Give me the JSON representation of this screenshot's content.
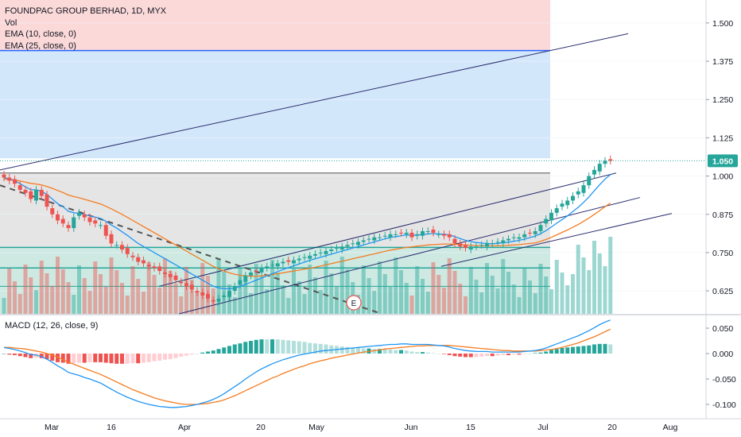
{
  "legend": {
    "title": "FOUNDPAC GROUP BERHAD, 1D, MYX",
    "vol": "Vol",
    "ema10": "EMA (10, close, 0)",
    "ema25": "EMA (25, close, 0)"
  },
  "macd_legend": "MACD (12, 26, close, 9)",
  "price_badge": "1.050",
  "event_marker": "E",
  "colors": {
    "up": "#26a69a",
    "down": "#ef5350",
    "ema10": "#2196f3",
    "ema25": "#f57c20",
    "trendline": "#2a2e6e",
    "range_red": "#fcd9d9",
    "range_blue": "#d3e7fb",
    "range_gray": "#e5e5e5",
    "range_green": "#cde9e2",
    "hline_blue": "#2962ff",
    "hline_green": "#26a69a",
    "price_line": "#26a69a"
  },
  "chart_data": [
    {
      "type": "candlestick",
      "title": "FOUNDPAC GROUP BERHAD, 1D, MYX",
      "y_ticks": [
        "1.500",
        "1.375",
        "1.250",
        "1.125",
        "1.000",
        "0.875",
        "0.750",
        "0.625"
      ],
      "ylim": [
        0.55,
        1.575
      ],
      "x_ticks": [
        "Mar",
        "16",
        "Apr",
        "20",
        "May",
        "Jun",
        "15",
        "Jul",
        "20",
        "Aug"
      ],
      "last_price": 1.05,
      "close": [
        0.995,
        0.985,
        0.975,
        0.955,
        0.945,
        0.925,
        0.955,
        0.935,
        0.9,
        0.875,
        0.855,
        0.845,
        0.83,
        0.865,
        0.88,
        0.865,
        0.85,
        0.845,
        0.84,
        0.805,
        0.78,
        0.775,
        0.76,
        0.745,
        0.735,
        0.72,
        0.715,
        0.705,
        0.7,
        0.69,
        0.68,
        0.67,
        0.66,
        0.65,
        0.64,
        0.63,
        0.62,
        0.61,
        0.6,
        0.59,
        0.6,
        0.61,
        0.625,
        0.64,
        0.66,
        0.675,
        0.685,
        0.69,
        0.7,
        0.705,
        0.71,
        0.715,
        0.72,
        0.72,
        0.725,
        0.73,
        0.735,
        0.74,
        0.745,
        0.75,
        0.755,
        0.76,
        0.765,
        0.77,
        0.775,
        0.78,
        0.785,
        0.79,
        0.795,
        0.8,
        0.8,
        0.805,
        0.81,
        0.81,
        0.815,
        0.815,
        0.8,
        0.81,
        0.82,
        0.82,
        0.815,
        0.81,
        0.805,
        0.8,
        0.78,
        0.77,
        0.765,
        0.77,
        0.77,
        0.775,
        0.78,
        0.78,
        0.785,
        0.79,
        0.795,
        0.8,
        0.8,
        0.81,
        0.815,
        0.82,
        0.84,
        0.86,
        0.88,
        0.895,
        0.91,
        0.92,
        0.935,
        0.95,
        0.97,
        1.0,
        1.02,
        1.04,
        1.05,
        1.05
      ],
      "ema10": [
        0.995,
        0.99,
        0.985,
        0.975,
        0.965,
        0.955,
        0.955,
        0.95,
        0.94,
        0.925,
        0.91,
        0.9,
        0.885,
        0.88,
        0.878,
        0.874,
        0.87,
        0.866,
        0.862,
        0.852,
        0.84,
        0.83,
        0.818,
        0.806,
        0.793,
        0.78,
        0.77,
        0.76,
        0.75,
        0.74,
        0.73,
        0.72,
        0.71,
        0.7,
        0.69,
        0.68,
        0.67,
        0.66,
        0.65,
        0.64,
        0.635,
        0.632,
        0.632,
        0.634,
        0.64,
        0.646,
        0.653,
        0.66,
        0.667,
        0.674,
        0.681,
        0.688,
        0.695,
        0.701,
        0.707,
        0.713,
        0.719,
        0.725,
        0.73,
        0.735,
        0.74,
        0.745,
        0.75,
        0.755,
        0.76,
        0.765,
        0.77,
        0.775,
        0.78,
        0.785,
        0.79,
        0.795,
        0.8,
        0.802,
        0.805,
        0.808,
        0.806,
        0.807,
        0.809,
        0.811,
        0.812,
        0.811,
        0.81,
        0.808,
        0.802,
        0.796,
        0.79,
        0.786,
        0.783,
        0.781,
        0.78,
        0.779,
        0.78,
        0.782,
        0.784,
        0.787,
        0.79,
        0.794,
        0.799,
        0.804,
        0.812,
        0.822,
        0.834,
        0.846,
        0.858,
        0.87,
        0.884,
        0.898,
        0.914,
        0.932,
        0.952,
        0.972,
        0.99,
        1.005
      ],
      "ema25": [
        0.99,
        0.989,
        0.987,
        0.984,
        0.98,
        0.976,
        0.974,
        0.971,
        0.966,
        0.96,
        0.953,
        0.946,
        0.938,
        0.933,
        0.929,
        0.924,
        0.919,
        0.914,
        0.909,
        0.901,
        0.893,
        0.884,
        0.875,
        0.865,
        0.855,
        0.845,
        0.835,
        0.825,
        0.815,
        0.805,
        0.795,
        0.785,
        0.775,
        0.765,
        0.755,
        0.745,
        0.735,
        0.725,
        0.715,
        0.705,
        0.697,
        0.69,
        0.684,
        0.679,
        0.676,
        0.674,
        0.673,
        0.673,
        0.674,
        0.676,
        0.678,
        0.681,
        0.684,
        0.687,
        0.69,
        0.693,
        0.696,
        0.699,
        0.702,
        0.706,
        0.71,
        0.714,
        0.718,
        0.722,
        0.726,
        0.73,
        0.734,
        0.738,
        0.742,
        0.746,
        0.75,
        0.754,
        0.758,
        0.761,
        0.764,
        0.767,
        0.769,
        0.771,
        0.773,
        0.775,
        0.776,
        0.777,
        0.778,
        0.778,
        0.777,
        0.776,
        0.775,
        0.774,
        0.773,
        0.772,
        0.772,
        0.772,
        0.772,
        0.773,
        0.774,
        0.775,
        0.776,
        0.778,
        0.78,
        0.782,
        0.787,
        0.793,
        0.8,
        0.808,
        0.816,
        0.824,
        0.833,
        0.842,
        0.852,
        0.863,
        0.875,
        0.887,
        0.9,
        0.912
      ]
    },
    {
      "type": "bar",
      "name": "Vol"
    },
    {
      "type": "macd",
      "title": "MACD (12, 26, close, 9)",
      "y_ticks": [
        "0.050",
        "0.000",
        "-0.050",
        "-0.100"
      ],
      "ylim": [
        -0.125,
        0.075
      ],
      "macd": [
        0.012,
        0.01,
        0.008,
        0.005,
        0.002,
        -0.002,
        -0.003,
        -0.006,
        -0.011,
        -0.017,
        -0.024,
        -0.03,
        -0.037,
        -0.04,
        -0.043,
        -0.047,
        -0.05,
        -0.054,
        -0.058,
        -0.064,
        -0.07,
        -0.076,
        -0.081,
        -0.086,
        -0.09,
        -0.094,
        -0.097,
        -0.1,
        -0.102,
        -0.104,
        -0.105,
        -0.106,
        -0.106,
        -0.105,
        -0.104,
        -0.102,
        -0.1,
        -0.097,
        -0.094,
        -0.09,
        -0.085,
        -0.079,
        -0.072,
        -0.065,
        -0.058,
        -0.05,
        -0.043,
        -0.036,
        -0.03,
        -0.025,
        -0.02,
        -0.016,
        -0.012,
        -0.009,
        -0.006,
        -0.003,
        -0.001,
        0.001,
        0.003,
        0.005,
        0.006,
        0.007,
        0.008,
        0.009,
        0.01,
        0.011,
        0.012,
        0.013,
        0.014,
        0.015,
        0.016,
        0.017,
        0.018,
        0.018,
        0.019,
        0.019,
        0.018,
        0.018,
        0.018,
        0.018,
        0.017,
        0.016,
        0.015,
        0.013,
        0.01,
        0.008,
        0.006,
        0.005,
        0.004,
        0.004,
        0.004,
        0.003,
        0.003,
        0.003,
        0.003,
        0.003,
        0.003,
        0.004,
        0.005,
        0.006,
        0.008,
        0.011,
        0.015,
        0.019,
        0.023,
        0.027,
        0.031,
        0.035,
        0.04,
        0.045,
        0.051,
        0.057,
        0.062,
        0.066
      ],
      "signal": [
        0.012,
        0.012,
        0.011,
        0.01,
        0.009,
        0.007,
        0.005,
        0.003,
        0.0,
        -0.003,
        -0.007,
        -0.012,
        -0.017,
        -0.021,
        -0.025,
        -0.029,
        -0.033,
        -0.037,
        -0.041,
        -0.046,
        -0.051,
        -0.056,
        -0.061,
        -0.066,
        -0.071,
        -0.075,
        -0.079,
        -0.083,
        -0.087,
        -0.09,
        -0.093,
        -0.095,
        -0.097,
        -0.099,
        -0.1,
        -0.1,
        -0.1,
        -0.099,
        -0.098,
        -0.096,
        -0.094,
        -0.091,
        -0.087,
        -0.083,
        -0.078,
        -0.073,
        -0.068,
        -0.063,
        -0.058,
        -0.053,
        -0.048,
        -0.044,
        -0.039,
        -0.035,
        -0.031,
        -0.027,
        -0.024,
        -0.02,
        -0.017,
        -0.014,
        -0.012,
        -0.009,
        -0.007,
        -0.005,
        -0.003,
        -0.001,
        0.001,
        0.003,
        0.004,
        0.006,
        0.007,
        0.009,
        0.01,
        0.011,
        0.012,
        0.013,
        0.014,
        0.015,
        0.015,
        0.016,
        0.016,
        0.016,
        0.016,
        0.016,
        0.015,
        0.014,
        0.013,
        0.012,
        0.011,
        0.01,
        0.009,
        0.008,
        0.007,
        0.006,
        0.006,
        0.005,
        0.005,
        0.005,
        0.005,
        0.005,
        0.006,
        0.007,
        0.008,
        0.01,
        0.012,
        0.015,
        0.018,
        0.021,
        0.025,
        0.029,
        0.033,
        0.038,
        0.043,
        0.048
      ]
    }
  ]
}
